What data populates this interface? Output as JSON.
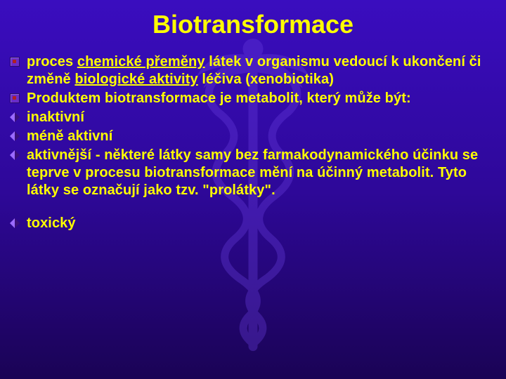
{
  "title": "Biotransformace",
  "colors": {
    "background_top": "#3a0dbf",
    "background_mid": "#2e0899",
    "background_bottom": "#1a0355",
    "text": "#ffff00",
    "title": "#ffff00",
    "bullet_square_fill": "#6a2cc8",
    "bullet_square_border": "#2a0a6a",
    "bullet_square_dot": "#b02020",
    "bullet_rhombus_left": "#9b6bff",
    "bullet_rhombus_right": "#3a107a",
    "caduceus": "#6a3fe0"
  },
  "typography": {
    "title_fontsize": 36,
    "body_fontsize": 20,
    "font_family": "Arial",
    "font_weight": "bold"
  },
  "items": [
    {
      "bullet": "square",
      "segments": [
        {
          "text": "proces ",
          "u": false
        },
        {
          "text": "chemické přeměny",
          "u": true
        },
        {
          "text": " látek v organismu vedoucí k ukončení či změně ",
          "u": false
        },
        {
          "text": "biologické aktivity",
          "u": true
        },
        {
          "text": " léčiva (xenobiotika)",
          "u": false
        }
      ]
    },
    {
      "bullet": "square",
      "segments": [
        {
          "text": "Produktem biotransformace je metabolit, který může být:",
          "u": false
        }
      ]
    },
    {
      "bullet": "rhombus",
      "segments": [
        {
          "text": "inaktivní",
          "u": false
        }
      ]
    },
    {
      "bullet": "rhombus",
      "segments": [
        {
          "text": "méně aktivní",
          "u": false
        }
      ]
    },
    {
      "bullet": "rhombus",
      "segments": [
        {
          "text": "aktivnější - některé látky samy bez farmakodynamického účinku se teprve v procesu biotransformace mění na účinný metabolit. Tyto látky se označují jako tzv. \"prolátky\".",
          "u": false
        }
      ]
    },
    {
      "bullet": "rhombus",
      "gap_above": true,
      "segments": [
        {
          "text": "toxický",
          "u": false
        }
      ]
    }
  ]
}
